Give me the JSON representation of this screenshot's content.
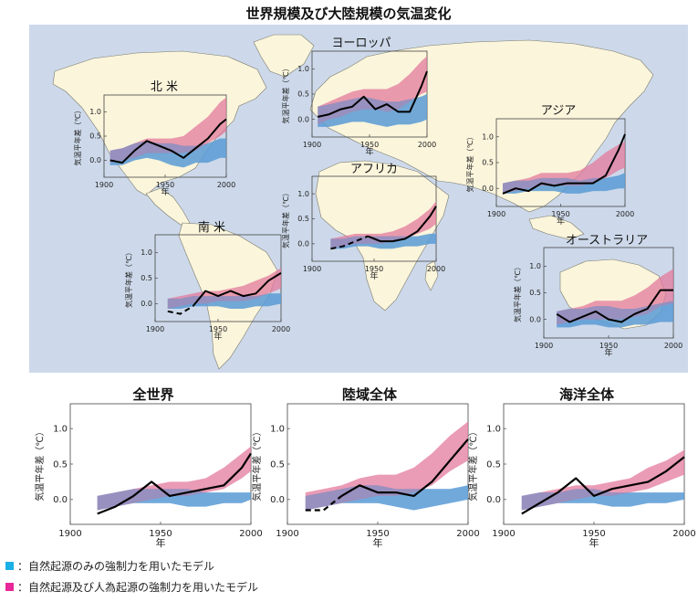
{
  "title": "世界規模及び大陸規模の気温変化",
  "colors": {
    "ocean": "#cdd9ea",
    "land": "#fbf5dc",
    "natural": "#5b9bd5",
    "anthro": "#e3799c",
    "observed": "#000000"
  },
  "legend": [
    {
      "color": "#1ab0e6",
      "label": "：自然起源のみの強制力を用いたモデル"
    },
    {
      "color": "#e8279a",
      "label": "：自然起源及び人為起源の強制力を用いたモデル"
    }
  ],
  "chart_data": [
    {
      "id": "north-america",
      "type": "area",
      "title": "北 米",
      "ylabel": "気温平年差（℃）",
      "xlabel": "年",
      "xlim": [
        1900,
        2000
      ],
      "ylim": [
        -0.35,
        1.35
      ],
      "xticks": [
        1900,
        1950,
        2000
      ],
      "yticks": [
        0.0,
        0.5,
        1.0
      ],
      "ytick_labels": [
        "0.0",
        "0.5",
        "1.0"
      ],
      "x": [
        1905,
        1915,
        1925,
        1935,
        1945,
        1955,
        1965,
        1975,
        1985,
        1995,
        2000
      ],
      "observed": [
        0.0,
        -0.05,
        0.2,
        0.4,
        0.3,
        0.2,
        0.05,
        0.25,
        0.45,
        0.75,
        0.85
      ],
      "natural_band": {
        "low": [
          -0.1,
          -0.1,
          0.0,
          0.05,
          0.0,
          -0.1,
          -0.15,
          -0.05,
          -0.05,
          0.05,
          0.05
        ],
        "high": [
          0.2,
          0.25,
          0.35,
          0.4,
          0.35,
          0.35,
          0.3,
          0.3,
          0.35,
          0.45,
          0.45
        ]
      },
      "anthro_band": {
        "low": [
          -0.05,
          0.0,
          0.05,
          0.15,
          0.15,
          0.15,
          0.15,
          0.2,
          0.35,
          0.5,
          0.6
        ],
        "high": [
          0.2,
          0.25,
          0.35,
          0.45,
          0.45,
          0.45,
          0.5,
          0.7,
          0.9,
          1.2,
          1.3
        ]
      }
    },
    {
      "id": "europe",
      "type": "area",
      "title": "ヨーロッパ",
      "ylabel": "気温平年差（℃）",
      "xlabel": "年",
      "xlim": [
        1900,
        2000
      ],
      "ylim": [
        -0.35,
        1.35
      ],
      "xticks": [
        1900,
        1950,
        2000
      ],
      "yticks": [
        0.0,
        0.5,
        1.0
      ],
      "ytick_labels": [
        "0.0",
        "0.5",
        "1.0"
      ],
      "x": [
        1905,
        1915,
        1925,
        1935,
        1945,
        1955,
        1965,
        1975,
        1985,
        1995,
        2000
      ],
      "observed": [
        0.05,
        0.1,
        0.2,
        0.25,
        0.45,
        0.2,
        0.3,
        0.15,
        0.15,
        0.65,
        0.95
      ],
      "natural_band": {
        "low": [
          -0.15,
          -0.15,
          -0.1,
          -0.05,
          -0.05,
          -0.1,
          -0.15,
          -0.1,
          -0.1,
          -0.05,
          0.0
        ],
        "high": [
          0.25,
          0.3,
          0.35,
          0.4,
          0.45,
          0.4,
          0.35,
          0.35,
          0.4,
          0.45,
          0.5
        ]
      },
      "anthro_band": {
        "low": [
          -0.1,
          0.0,
          0.05,
          0.15,
          0.2,
          0.2,
          0.15,
          0.2,
          0.35,
          0.5,
          0.55
        ],
        "high": [
          0.25,
          0.35,
          0.45,
          0.55,
          0.6,
          0.6,
          0.6,
          0.7,
          0.9,
          1.15,
          1.25
        ]
      }
    },
    {
      "id": "asia",
      "type": "area",
      "title": "アジア",
      "ylabel": "気温平年差（℃）",
      "xlabel": "年",
      "xlim": [
        1900,
        2000
      ],
      "ylim": [
        -0.35,
        1.35
      ],
      "xticks": [
        1900,
        1950,
        2000
      ],
      "yticks": [
        0.0,
        0.5,
        1.0
      ],
      "ytick_labels": [
        "0.0",
        "0.5",
        "1.0"
      ],
      "x": [
        1905,
        1915,
        1925,
        1935,
        1945,
        1955,
        1965,
        1975,
        1985,
        1995,
        2000
      ],
      "observed": [
        -0.1,
        0.0,
        -0.05,
        0.1,
        0.05,
        0.1,
        0.1,
        0.1,
        0.25,
        0.75,
        1.05
      ],
      "natural_band": {
        "low": [
          -0.1,
          -0.1,
          -0.05,
          -0.05,
          -0.05,
          -0.1,
          -0.1,
          -0.05,
          -0.05,
          0.0,
          0.0
        ],
        "high": [
          0.1,
          0.15,
          0.15,
          0.2,
          0.2,
          0.2,
          0.15,
          0.2,
          0.2,
          0.25,
          0.3
        ]
      },
      "anthro_band": {
        "low": [
          -0.1,
          -0.05,
          0.0,
          0.05,
          0.05,
          0.05,
          0.05,
          0.1,
          0.2,
          0.35,
          0.4
        ],
        "high": [
          0.1,
          0.15,
          0.2,
          0.3,
          0.3,
          0.3,
          0.35,
          0.5,
          0.7,
          0.85,
          0.9
        ]
      }
    },
    {
      "id": "africa",
      "type": "area",
      "title": "アフリカ",
      "ylabel": "気温平年差（℃）",
      "xlabel": "年",
      "xlim": [
        1900,
        2000
      ],
      "ylim": [
        -0.35,
        1.35
      ],
      "xticks": [
        1900,
        1950,
        2000
      ],
      "yticks": [
        0.0,
        0.5,
        1.0
      ],
      "ytick_labels": [
        "0.0",
        "0.5",
        "1.0"
      ],
      "x": [
        1915,
        1925,
        1935,
        1945,
        1955,
        1965,
        1975,
        1985,
        1995,
        2000
      ],
      "observed": [
        -0.1,
        -0.05,
        0.05,
        0.15,
        0.05,
        0.05,
        0.1,
        0.25,
        0.55,
        0.75
      ],
      "observed_dashed_until": 1935,
      "natural_band": {
        "low": [
          -0.1,
          -0.1,
          -0.05,
          -0.05,
          -0.1,
          -0.1,
          -0.05,
          -0.05,
          0.0,
          0.0
        ],
        "high": [
          0.1,
          0.1,
          0.15,
          0.15,
          0.15,
          0.15,
          0.15,
          0.15,
          0.2,
          0.2
        ]
      },
      "anthro_band": {
        "low": [
          -0.1,
          -0.05,
          0.0,
          0.0,
          0.0,
          0.05,
          0.1,
          0.2,
          0.3,
          0.4
        ],
        "high": [
          0.1,
          0.15,
          0.2,
          0.2,
          0.2,
          0.25,
          0.35,
          0.5,
          0.7,
          0.85
        ]
      }
    },
    {
      "id": "south-america",
      "type": "area",
      "title": "南 米",
      "ylabel": "気温平年差（℃）",
      "xlabel": "年",
      "xlim": [
        1900,
        2000
      ],
      "ylim": [
        -0.35,
        1.35
      ],
      "xticks": [
        1900,
        1950,
        2000
      ],
      "yticks": [
        0.0,
        0.5,
        1.0
      ],
      "ytick_labels": [
        "0.0",
        "0.5",
        "1.0"
      ],
      "x": [
        1910,
        1920,
        1930,
        1940,
        1950,
        1960,
        1970,
        1980,
        1990,
        2000
      ],
      "observed": [
        -0.15,
        -0.2,
        -0.05,
        0.25,
        0.15,
        0.25,
        0.15,
        0.2,
        0.45,
        0.6
      ],
      "observed_dashed_until": 1925,
      "natural_band": {
        "low": [
          -0.1,
          -0.1,
          -0.05,
          -0.05,
          -0.05,
          -0.1,
          -0.1,
          -0.05,
          -0.05,
          0.0
        ],
        "high": [
          0.1,
          0.1,
          0.15,
          0.15,
          0.15,
          0.15,
          0.15,
          0.15,
          0.2,
          0.2
        ]
      },
      "anthro_band": {
        "low": [
          -0.1,
          -0.05,
          0.0,
          0.0,
          0.05,
          0.05,
          0.05,
          0.1,
          0.2,
          0.3
        ],
        "high": [
          0.1,
          0.15,
          0.2,
          0.25,
          0.25,
          0.3,
          0.35,
          0.45,
          0.55,
          0.7
        ]
      }
    },
    {
      "id": "australia",
      "type": "area",
      "title": "オーストラリア",
      "ylabel": "気温平年差（℃）",
      "xlabel": "年",
      "xlim": [
        1900,
        2000
      ],
      "ylim": [
        -0.35,
        1.35
      ],
      "xticks": [
        1900,
        1950,
        2000
      ],
      "yticks": [
        0.0,
        0.5,
        1.0
      ],
      "ytick_labels": [
        "0.0",
        "0.5",
        "1.0"
      ],
      "x": [
        1910,
        1920,
        1930,
        1940,
        1950,
        1960,
        1970,
        1980,
        1990,
        2000
      ],
      "observed": [
        0.1,
        -0.05,
        0.05,
        0.15,
        0.0,
        -0.05,
        0.1,
        0.2,
        0.55,
        0.55
      ],
      "natural_band": {
        "low": [
          -0.15,
          -0.15,
          -0.1,
          -0.1,
          -0.15,
          -0.15,
          -0.1,
          -0.1,
          -0.05,
          -0.05
        ],
        "high": [
          0.15,
          0.2,
          0.2,
          0.25,
          0.25,
          0.2,
          0.2,
          0.25,
          0.3,
          0.35
        ]
      },
      "anthro_band": {
        "low": [
          -0.1,
          -0.05,
          0.0,
          0.0,
          0.0,
          0.0,
          0.05,
          0.1,
          0.25,
          0.3
        ],
        "high": [
          0.15,
          0.2,
          0.25,
          0.35,
          0.35,
          0.35,
          0.45,
          0.6,
          0.8,
          0.95
        ]
      }
    },
    {
      "id": "global",
      "type": "area",
      "title": "全世界",
      "ylabel": "気温平年差（℃）",
      "xlabel": "年",
      "xlim": [
        1900,
        2000
      ],
      "ylim": [
        -0.35,
        1.35
      ],
      "xticks": [
        1900,
        1950,
        2000
      ],
      "yticks": [
        0.0,
        0.5,
        1.0
      ],
      "ytick_labels": [
        "0.0",
        "0.5",
        "1.0"
      ],
      "x": [
        1915,
        1925,
        1935,
        1945,
        1955,
        1965,
        1975,
        1985,
        1995,
        2000
      ],
      "observed": [
        -0.2,
        -0.1,
        0.05,
        0.25,
        0.05,
        0.1,
        0.15,
        0.2,
        0.45,
        0.65
      ],
      "natural_band": {
        "low": [
          -0.15,
          -0.1,
          -0.05,
          -0.05,
          -0.05,
          -0.1,
          -0.1,
          -0.05,
          -0.05,
          0.0
        ],
        "high": [
          0.05,
          0.1,
          0.15,
          0.15,
          0.15,
          0.15,
          0.1,
          0.1,
          0.1,
          0.1
        ]
      },
      "anthro_band": {
        "low": [
          -0.15,
          -0.1,
          -0.05,
          0.0,
          0.05,
          0.05,
          0.1,
          0.15,
          0.3,
          0.4
        ],
        "high": [
          0.05,
          0.1,
          0.15,
          0.2,
          0.25,
          0.25,
          0.3,
          0.45,
          0.65,
          0.75
        ]
      }
    },
    {
      "id": "land",
      "type": "area",
      "title": "陸域全体",
      "ylabel": "気温平年差（℃）",
      "xlabel": "年",
      "xlim": [
        1900,
        2000
      ],
      "ylim": [
        -0.35,
        1.35
      ],
      "xticks": [
        1900,
        1950,
        2000
      ],
      "yticks": [
        0.0,
        0.5,
        1.0
      ],
      "ytick_labels": [
        "0.0",
        "0.5",
        "1.0"
      ],
      "x": [
        1910,
        1920,
        1930,
        1940,
        1950,
        1960,
        1970,
        1980,
        1990,
        2000
      ],
      "observed": [
        -0.15,
        -0.15,
        0.05,
        0.2,
        0.1,
        0.1,
        0.05,
        0.25,
        0.55,
        0.85
      ],
      "observed_dashed_until": 1925,
      "natural_band": {
        "low": [
          -0.15,
          -0.1,
          -0.05,
          -0.05,
          -0.05,
          -0.1,
          -0.15,
          -0.1,
          -0.05,
          0.0
        ],
        "high": [
          0.05,
          0.1,
          0.15,
          0.2,
          0.2,
          0.15,
          0.15,
          0.15,
          0.15,
          0.2
        ]
      },
      "anthro_band": {
        "low": [
          -0.15,
          -0.1,
          -0.05,
          0.0,
          0.05,
          0.05,
          0.1,
          0.2,
          0.4,
          0.55
        ],
        "high": [
          0.1,
          0.15,
          0.2,
          0.3,
          0.35,
          0.35,
          0.45,
          0.65,
          0.9,
          1.1
        ]
      }
    },
    {
      "id": "ocean",
      "type": "area",
      "title": "海洋全体",
      "ylabel": "気温平年差（℃）",
      "xlabel": "年",
      "xlim": [
        1900,
        2000
      ],
      "ylim": [
        -0.35,
        1.35
      ],
      "xticks": [
        1900,
        1950,
        2000
      ],
      "yticks": [
        0.0,
        0.5,
        1.0
      ],
      "ytick_labels": [
        "0.0",
        "0.5",
        "1.0"
      ],
      "x": [
        1910,
        1920,
        1930,
        1940,
        1950,
        1960,
        1970,
        1980,
        1990,
        2000
      ],
      "observed": [
        -0.2,
        -0.05,
        0.1,
        0.3,
        0.05,
        0.15,
        0.2,
        0.25,
        0.4,
        0.6
      ],
      "natural_band": {
        "low": [
          -0.15,
          -0.1,
          -0.05,
          -0.05,
          -0.05,
          -0.1,
          -0.1,
          -0.05,
          -0.05,
          0.0
        ],
        "high": [
          0.05,
          0.1,
          0.1,
          0.15,
          0.15,
          0.1,
          0.1,
          0.1,
          0.1,
          0.1
        ]
      },
      "anthro_band": {
        "low": [
          -0.15,
          -0.1,
          -0.05,
          0.0,
          0.05,
          0.05,
          0.1,
          0.15,
          0.25,
          0.35
        ],
        "high": [
          0.05,
          0.1,
          0.15,
          0.2,
          0.2,
          0.25,
          0.3,
          0.45,
          0.55,
          0.7
        ]
      }
    }
  ]
}
